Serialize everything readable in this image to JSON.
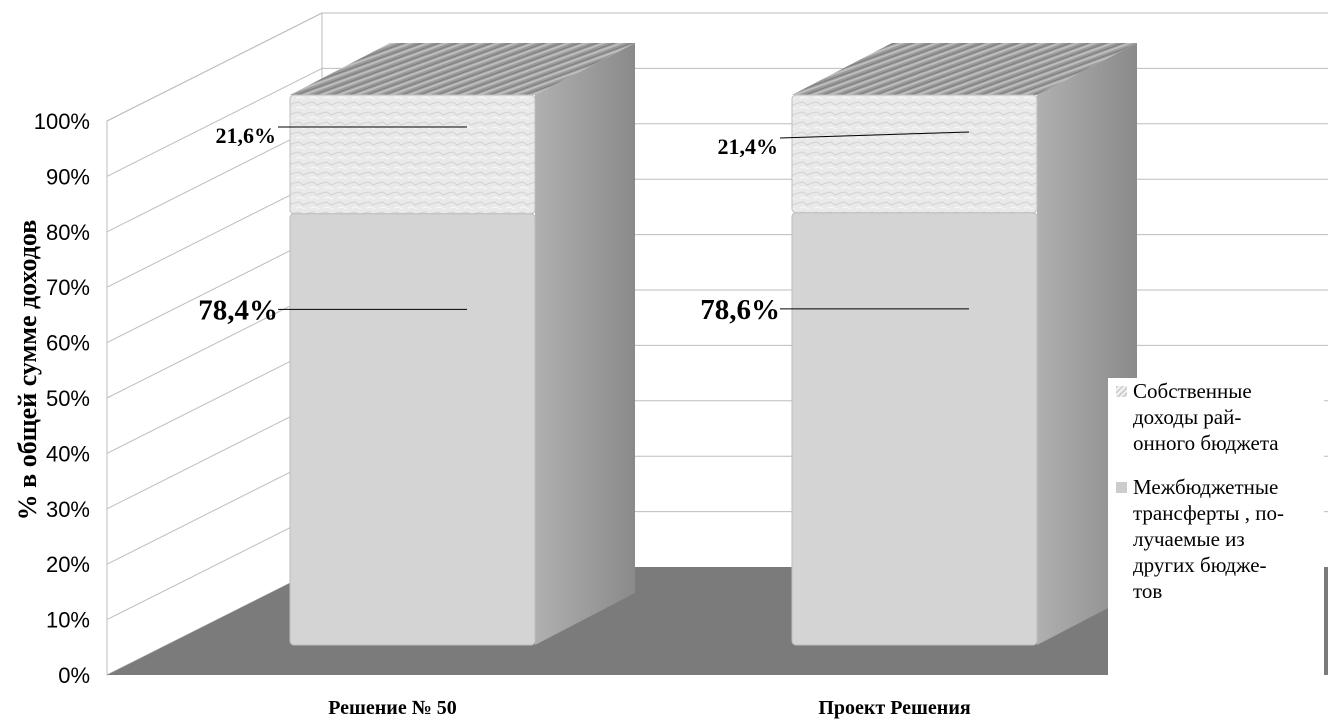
{
  "chart_data": {
    "type": "bar",
    "stacked": true,
    "percent": true,
    "style": "3d",
    "categories": [
      "Решение № 50",
      "Проект Решения"
    ],
    "series": [
      {
        "name": "Межбюджетные трансферты , получаемые из других бюджетов",
        "values": [
          78.4,
          78.6
        ],
        "labels": [
          "78,4%",
          "78,6%"
        ],
        "color": "#d4d4d4"
      },
      {
        "name": "Собственные доходы районного бюджета",
        "values": [
          21.6,
          21.4
        ],
        "labels": [
          "21,6%",
          "21,4%"
        ],
        "color": "#e6e6e6"
      }
    ],
    "ylabel": "% в общей сумме доходов",
    "ylim": [
      0,
      100
    ],
    "yticks": [
      "0%",
      "10%",
      "20%",
      "30%",
      "40%",
      "50%",
      "60%",
      "70%",
      "80%",
      "90%",
      "100%"
    ],
    "grid": true,
    "legend_position": "right"
  },
  "legend": {
    "own_revenue": "Собственные\nдоходы рай-\nонного бюджета",
    "transfers": "Межбюджетные\nтрансферты , по-\nлучаемые из\nдругих бюдже-\nтов"
  }
}
